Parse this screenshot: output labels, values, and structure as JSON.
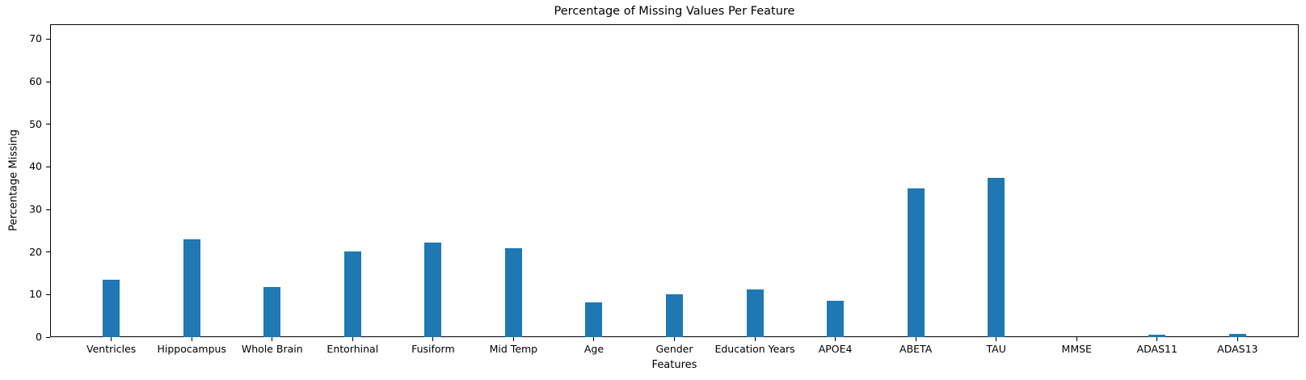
{
  "chart_data": {
    "type": "bar",
    "title": "Percentage of Missing Values Per Feature",
    "xlabel": "Features",
    "ylabel": "Percentage Missing",
    "categories": [
      "Ventricles",
      "Hippocampus",
      "Whole Brain",
      "Entorhinal",
      "Fusiform",
      "Mid Temp",
      "Age",
      "Gender",
      "Education Years",
      "APOE4",
      "ABETA",
      "TAU",
      "MMSE",
      "ADAS11",
      "ADAS13"
    ],
    "values": [
      13.4,
      23.0,
      11.8,
      20.1,
      22.2,
      20.8,
      8.2,
      10.0,
      11.2,
      8.5,
      35.0,
      37.4,
      0.0,
      0.5,
      0.7
    ],
    "yticks": [
      0,
      10,
      20,
      30,
      40,
      50,
      60,
      70
    ],
    "ylim": [
      0,
      73.5
    ],
    "grid": false,
    "legend_position": "none",
    "bar_color": "#1f77b4",
    "axis_color": "#000000",
    "background_color": "#ffffff"
  }
}
